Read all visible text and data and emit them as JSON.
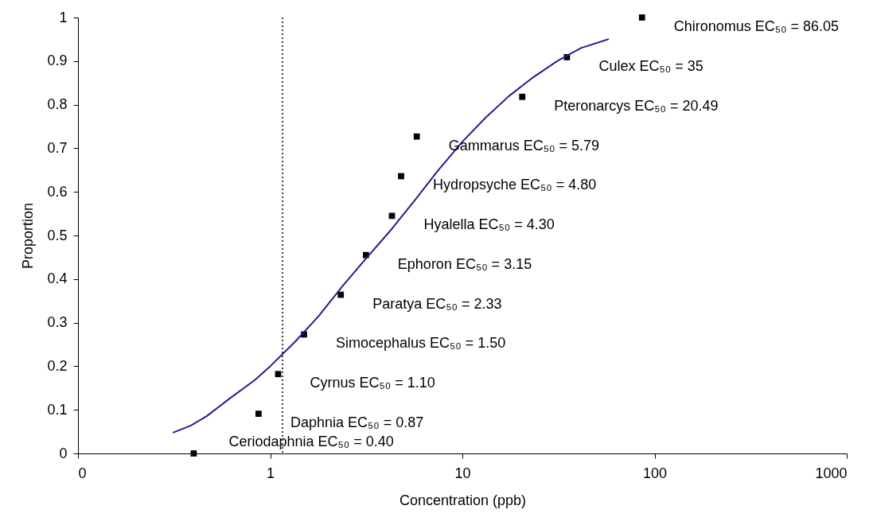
{
  "chart_data": {
    "type": "scatter",
    "xlabel": "Concentration (ppb)",
    "ylabel": "Proportion",
    "log": "x",
    "xlim": [
      0.1,
      1000
    ],
    "xticks": [
      {
        "value": 0.1,
        "label": "0"
      },
      1,
      10,
      100,
      1000
    ],
    "ylim": [
      0,
      1
    ],
    "yticks": [
      0,
      0.1,
      0.2,
      0.3,
      0.4,
      0.5,
      0.6,
      0.7,
      0.8,
      0.9,
      1
    ],
    "grid": false,
    "series": [
      {
        "color": "#000000",
        "marker": "square",
        "x": [
          0.4,
          0.87,
          1.1,
          1.5,
          2.33,
          3.15,
          4.3,
          4.8,
          5.79,
          20.49,
          35,
          86.05
        ],
        "values": [
          0,
          0.091,
          0.182,
          0.273,
          0.364,
          0.455,
          0.545,
          0.636,
          0.727,
          0.818,
          0.909,
          1.0
        ]
      },
      {
        "type": "line",
        "color": "#1f1f8f",
        "line_style": "solid",
        "x": [
          0.314,
          0.387,
          0.469,
          0.624,
          0.83,
          1.0,
          1.34,
          1.78,
          2.37,
          3.15,
          4.2,
          5.59,
          7.44,
          10,
          13.2,
          17.5,
          23.4,
          31.1,
          41.4,
          57.3
        ],
        "values": [
          0.048,
          0.064,
          0.086,
          0.128,
          0.168,
          0.2,
          0.255,
          0.314,
          0.383,
          0.447,
          0.51,
          0.578,
          0.648,
          0.715,
          0.77,
          0.82,
          0.863,
          0.9,
          0.93,
          0.95
        ]
      }
    ],
    "ref_lines": [
      {
        "axis": "x",
        "value": 1.16,
        "color": "#000000",
        "line_style": "dotted"
      }
    ],
    "annotations": [
      {
        "text": "Ceriodaphnia EC₅₀ = 0.40",
        "x": 0.4,
        "y": 0
      },
      {
        "text": "Daphnia EC₅₀ = 0.87",
        "x": 0.87,
        "y": 0.091
      },
      {
        "text": "Cyrnus EC₅₀ = 1.10",
        "x": 1.1,
        "y": 0.182
      },
      {
        "text": "Simocephalus EC₅₀ = 1.50",
        "x": 1.5,
        "y": 0.273
      },
      {
        "text": "Paratya EC₅₀ = 2.33",
        "x": 2.33,
        "y": 0.364
      },
      {
        "text": "Ephoron EC₅₀ = 3.15",
        "x": 3.15,
        "y": 0.455
      },
      {
        "text": "Hyalella EC₅₀ = 4.30",
        "x": 4.3,
        "y": 0.545
      },
      {
        "text": "Hydropsyche EC₅₀ = 4.80",
        "x": 4.8,
        "y": 0.636
      },
      {
        "text": "Gammarus EC₅₀ = 5.79",
        "x": 5.79,
        "y": 0.727
      },
      {
        "text": "Pteronarcys EC₅₀ = 20.49",
        "x": 20.49,
        "y": 0.818
      },
      {
        "text": "Culex EC₅₀ = 35",
        "x": 35,
        "y": 0.909
      },
      {
        "text": "Chironomus EC₅₀ = 86.05",
        "x": 86.05,
        "y": 1.0
      }
    ]
  }
}
